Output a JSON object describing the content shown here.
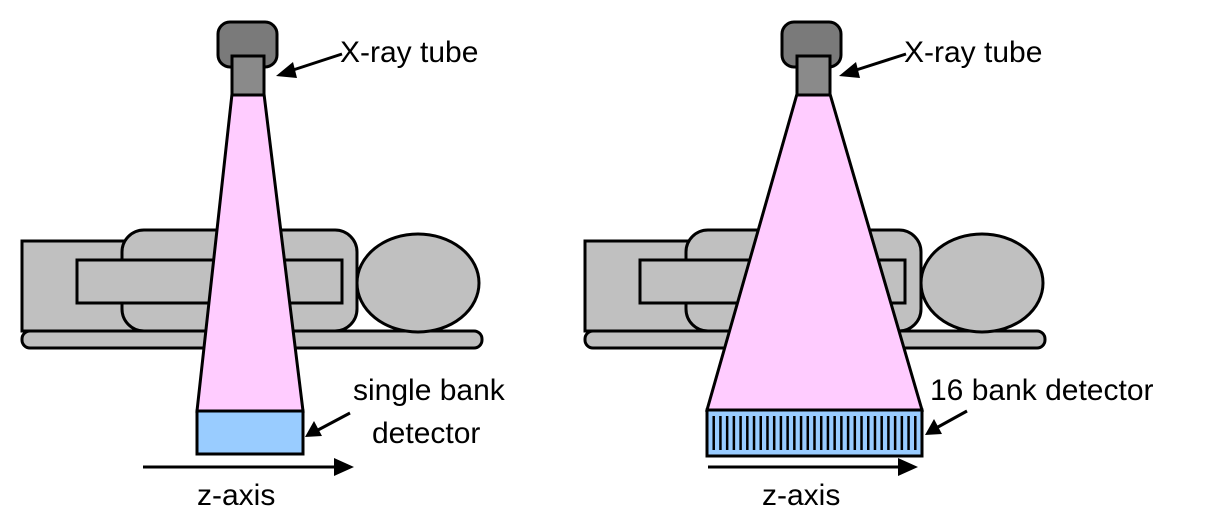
{
  "colors": {
    "beam": "#ffccff",
    "detector": "#99ccff",
    "patient": "#c0c0c0",
    "tube": "#7a7a7a"
  },
  "panels": [
    {
      "tube_label": "X-ray tube",
      "detector_label_lines": [
        "single bank",
        "detector"
      ],
      "axis_label": "z-axis"
    },
    {
      "tube_label": "X-ray tube",
      "detector_label_lines": [
        "16 bank detector"
      ],
      "axis_label": "z-axis",
      "detector_banks": 16
    }
  ]
}
